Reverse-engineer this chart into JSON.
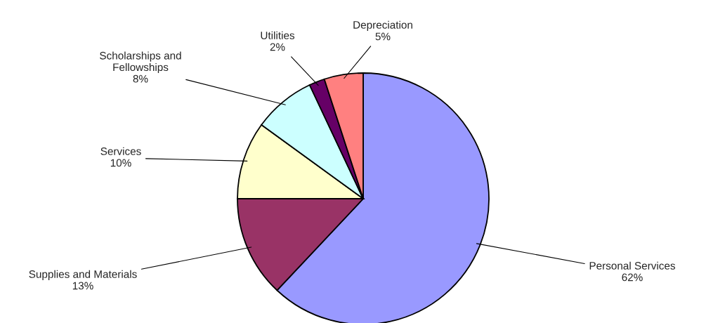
{
  "chart_data": {
    "type": "pie",
    "categories": [
      "Personal Services",
      "Supplies and Materials",
      "Services",
      "Scholarships and Fellowships",
      "Utilities",
      "Depreciation"
    ],
    "values": [
      62,
      13,
      10,
      8,
      2,
      5
    ],
    "colors": [
      "#9999ff",
      "#993366",
      "#ffffcc",
      "#ccffff",
      "#660066",
      "#ff8080"
    ],
    "value_labels": [
      "62%",
      "13%",
      "10%",
      "8%",
      "2%",
      "5%"
    ]
  }
}
